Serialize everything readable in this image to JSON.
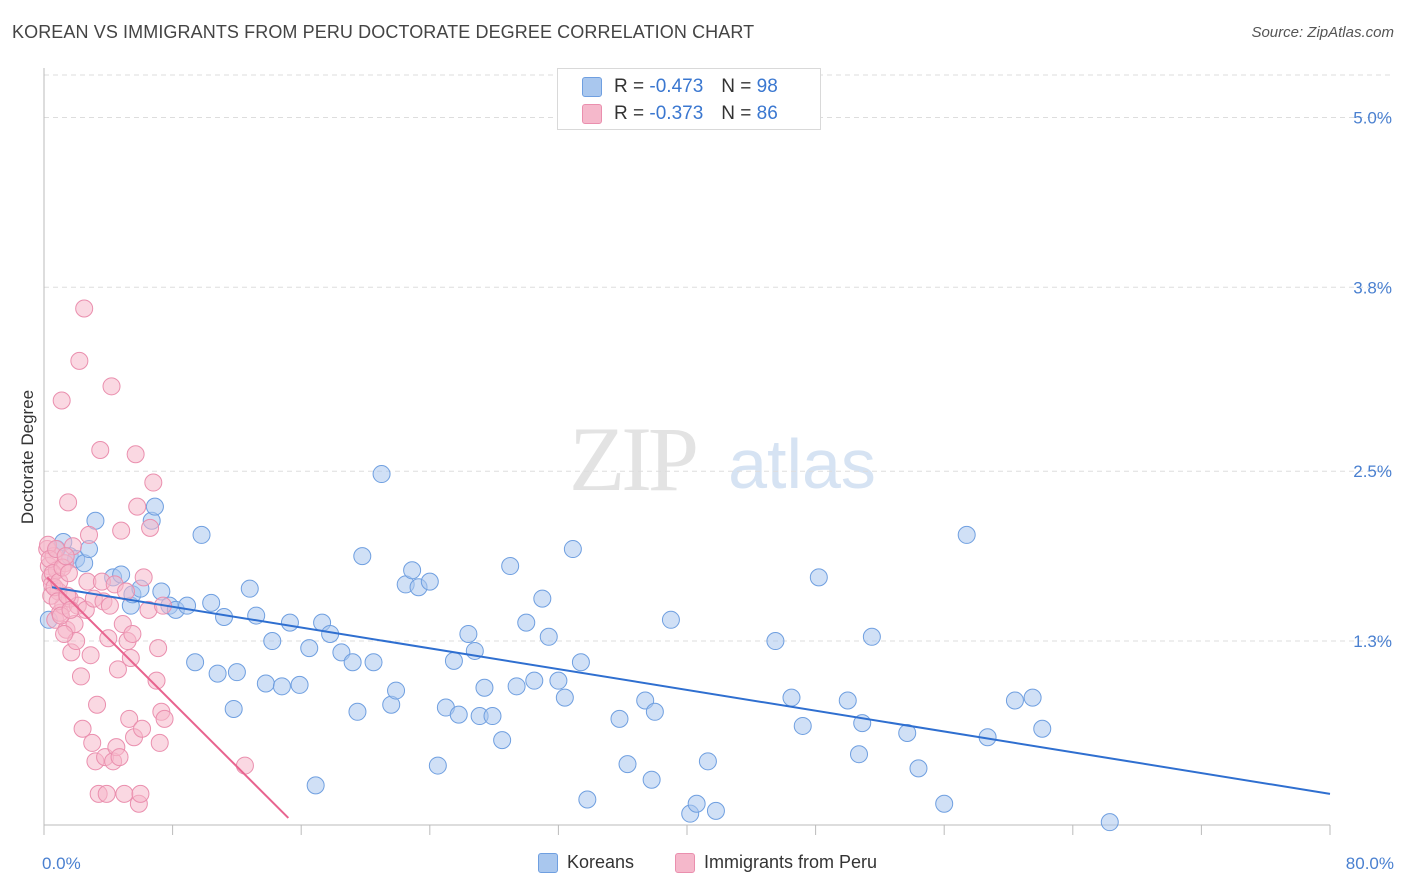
{
  "title": "KOREAN VS IMMIGRANTS FROM PERU DOCTORATE DEGREE CORRELATION CHART",
  "source": "Source: ZipAtlas.com",
  "watermark": {
    "zip": "ZIP",
    "atlas": "atlas"
  },
  "colors": {
    "korean_fill": "#a9c7ee",
    "korean_stroke": "#6f9fe0",
    "korean_line": "#2f6fd0",
    "peru_fill": "#f5b8cb",
    "peru_stroke": "#ea8fae",
    "peru_line": "#e8648f",
    "tick_label": "#4a80d0",
    "grid": "#dddddd"
  },
  "legend_top": {
    "rows": [
      {
        "r_label": "R =",
        "r_value": "-0.473",
        "n_label": "N =",
        "n_value": "98"
      },
      {
        "r_label": "R =",
        "r_value": "-0.373",
        "n_label": "N =",
        "n_value": "86"
      }
    ]
  },
  "legend_bottom": {
    "korean": "Koreans",
    "peru": "Immigrants from Peru"
  },
  "chart_data": {
    "type": "scatter",
    "title": "KOREAN VS IMMIGRANTS FROM PERU DOCTORATE DEGREE CORRELATION CHART",
    "xlabel": "",
    "ylabel": "Doctorate Degree",
    "xlim": [
      0,
      80
    ],
    "ylim": [
      0,
      5.3
    ],
    "x_tick_labels": [
      "0.0%",
      "80.0%"
    ],
    "y_ticks": [
      1.3,
      2.5,
      3.8,
      5.0
    ],
    "y_tick_labels": [
      "1.3%",
      "2.5%",
      "3.8%",
      "5.0%"
    ],
    "grid": "horizontal dashed",
    "legend_placement": "bottom",
    "series": [
      {
        "name": "Koreans",
        "R": -0.473,
        "N": 98,
        "trend": {
          "x": [
            0.5,
            80
          ],
          "y": [
            1.68,
            0.22
          ]
        },
        "points": [
          [
            0.3,
            1.45
          ],
          [
            0.8,
            1.95
          ],
          [
            1.2,
            2.0
          ],
          [
            1.6,
            1.9
          ],
          [
            2.0,
            1.88
          ],
          [
            2.5,
            1.85
          ],
          [
            2.8,
            1.95
          ],
          [
            3.2,
            2.15
          ],
          [
            4.3,
            1.75
          ],
          [
            4.8,
            1.77
          ],
          [
            5.4,
            1.55
          ],
          [
            5.5,
            1.63
          ],
          [
            6.0,
            1.67
          ],
          [
            6.7,
            2.15
          ],
          [
            6.9,
            2.25
          ],
          [
            7.3,
            1.65
          ],
          [
            7.8,
            1.55
          ],
          [
            8.2,
            1.52
          ],
          [
            8.9,
            1.55
          ],
          [
            9.4,
            1.15
          ],
          [
            9.8,
            2.05
          ],
          [
            10.4,
            1.57
          ],
          [
            10.8,
            1.07
          ],
          [
            11.2,
            1.47
          ],
          [
            11.8,
            0.82
          ],
          [
            12.0,
            1.08
          ],
          [
            12.8,
            1.67
          ],
          [
            13.2,
            1.48
          ],
          [
            13.8,
            1.0
          ],
          [
            14.2,
            1.3
          ],
          [
            14.8,
            0.98
          ],
          [
            15.3,
            1.43
          ],
          [
            15.9,
            0.99
          ],
          [
            16.5,
            1.25
          ],
          [
            16.9,
            0.28
          ],
          [
            17.3,
            1.43
          ],
          [
            17.8,
            1.35
          ],
          [
            18.5,
            1.22
          ],
          [
            19.2,
            1.15
          ],
          [
            19.5,
            0.8
          ],
          [
            19.8,
            1.9
          ],
          [
            20.5,
            1.15
          ],
          [
            21.0,
            2.48
          ],
          [
            21.6,
            0.85
          ],
          [
            21.9,
            0.95
          ],
          [
            22.5,
            1.7
          ],
          [
            22.9,
            1.8
          ],
          [
            23.3,
            1.68
          ],
          [
            24.0,
            1.72
          ],
          [
            24.5,
            0.42
          ],
          [
            25.0,
            0.83
          ],
          [
            25.5,
            1.16
          ],
          [
            25.8,
            0.78
          ],
          [
            26.4,
            1.35
          ],
          [
            26.8,
            1.23
          ],
          [
            27.1,
            0.77
          ],
          [
            27.4,
            0.97
          ],
          [
            27.9,
            0.77
          ],
          [
            28.5,
            0.6
          ],
          [
            29.0,
            1.83
          ],
          [
            29.4,
            0.98
          ],
          [
            30.0,
            1.43
          ],
          [
            30.5,
            1.02
          ],
          [
            31.0,
            1.6
          ],
          [
            31.4,
            1.33
          ],
          [
            32.0,
            1.02
          ],
          [
            32.4,
            0.9
          ],
          [
            32.9,
            1.95
          ],
          [
            33.4,
            1.15
          ],
          [
            33.8,
            0.18
          ],
          [
            35.8,
            0.75
          ],
          [
            36.3,
            0.43
          ],
          [
            37.4,
            0.88
          ],
          [
            37.8,
            0.32
          ],
          [
            38.0,
            0.8
          ],
          [
            39.0,
            1.45
          ],
          [
            40.2,
            0.08
          ],
          [
            40.6,
            0.15
          ],
          [
            41.3,
            0.45
          ],
          [
            41.8,
            0.1
          ],
          [
            45.5,
            1.3
          ],
          [
            46.5,
            0.9
          ],
          [
            47.2,
            0.7
          ],
          [
            48.2,
            1.75
          ],
          [
            50.0,
            0.88
          ],
          [
            50.7,
            0.5
          ],
          [
            50.9,
            0.72
          ],
          [
            51.5,
            1.33
          ],
          [
            53.7,
            0.65
          ],
          [
            54.4,
            0.4
          ],
          [
            56.0,
            0.15
          ],
          [
            57.4,
            2.05
          ],
          [
            58.7,
            0.62
          ],
          [
            60.4,
            0.88
          ],
          [
            61.5,
            0.9
          ],
          [
            62.1,
            0.68
          ],
          [
            66.3,
            0.02
          ]
        ]
      },
      {
        "name": "Immigrants from Peru",
        "R": -0.373,
        "N": 86,
        "trend": {
          "x": [
            0.2,
            15.2
          ],
          "y": [
            1.75,
            0.05
          ]
        },
        "points": [
          [
            0.2,
            1.95
          ],
          [
            0.3,
            1.83
          ],
          [
            0.4,
            1.75
          ],
          [
            0.5,
            1.7
          ],
          [
            0.6,
            1.9
          ],
          [
            0.7,
            1.45
          ],
          [
            0.8,
            1.8
          ],
          [
            0.9,
            1.65
          ],
          [
            1.0,
            1.5
          ],
          [
            1.1,
            3.0
          ],
          [
            1.2,
            1.55
          ],
          [
            1.3,
            1.85
          ],
          [
            1.4,
            1.38
          ],
          [
            1.5,
            2.28
          ],
          [
            1.6,
            1.6
          ],
          [
            1.7,
            1.22
          ],
          [
            1.8,
            1.97
          ],
          [
            1.9,
            1.42
          ],
          [
            2.0,
            1.3
          ],
          [
            2.1,
            1.55
          ],
          [
            2.2,
            3.28
          ],
          [
            2.3,
            1.05
          ],
          [
            2.4,
            0.68
          ],
          [
            2.5,
            3.65
          ],
          [
            2.6,
            1.52
          ],
          [
            2.7,
            1.72
          ],
          [
            2.8,
            2.05
          ],
          [
            2.9,
            1.2
          ],
          [
            3.0,
            0.58
          ],
          [
            3.1,
            1.6
          ],
          [
            3.2,
            0.45
          ],
          [
            3.3,
            0.85
          ],
          [
            3.4,
            0.22
          ],
          [
            3.5,
            2.65
          ],
          [
            3.6,
            1.72
          ],
          [
            3.7,
            1.58
          ],
          [
            3.8,
            0.48
          ],
          [
            3.9,
            0.22
          ],
          [
            4.0,
            1.32
          ],
          [
            4.1,
            1.55
          ],
          [
            4.2,
            3.1
          ],
          [
            4.3,
            0.45
          ],
          [
            4.4,
            1.7
          ],
          [
            4.5,
            0.55
          ],
          [
            4.6,
            1.1
          ],
          [
            4.7,
            0.48
          ],
          [
            4.8,
            2.08
          ],
          [
            4.9,
            1.42
          ],
          [
            5.0,
            0.22
          ],
          [
            5.1,
            1.65
          ],
          [
            5.2,
            1.3
          ],
          [
            5.3,
            0.75
          ],
          [
            5.4,
            1.18
          ],
          [
            5.5,
            1.35
          ],
          [
            5.6,
            0.62
          ],
          [
            5.7,
            2.62
          ],
          [
            5.8,
            2.25
          ],
          [
            5.9,
            0.15
          ],
          [
            6.0,
            0.22
          ],
          [
            6.1,
            0.68
          ],
          [
            6.2,
            1.75
          ],
          [
            6.5,
            1.52
          ],
          [
            6.6,
            2.1
          ],
          [
            6.8,
            2.42
          ],
          [
            7.0,
            1.02
          ],
          [
            7.1,
            1.25
          ],
          [
            7.2,
            0.58
          ],
          [
            7.3,
            0.8
          ],
          [
            7.4,
            1.55
          ],
          [
            7.5,
            0.75
          ],
          [
            12.5,
            0.42
          ],
          [
            0.25,
            1.98
          ],
          [
            0.35,
            1.88
          ],
          [
            0.45,
            1.62
          ],
          [
            0.55,
            1.78
          ],
          [
            0.65,
            1.68
          ],
          [
            0.75,
            1.95
          ],
          [
            0.85,
            1.58
          ],
          [
            0.95,
            1.72
          ],
          [
            1.05,
            1.48
          ],
          [
            1.15,
            1.82
          ],
          [
            1.25,
            1.35
          ],
          [
            1.35,
            1.9
          ],
          [
            1.45,
            1.62
          ],
          [
            1.55,
            1.78
          ],
          [
            1.65,
            1.52
          ]
        ]
      }
    ]
  }
}
